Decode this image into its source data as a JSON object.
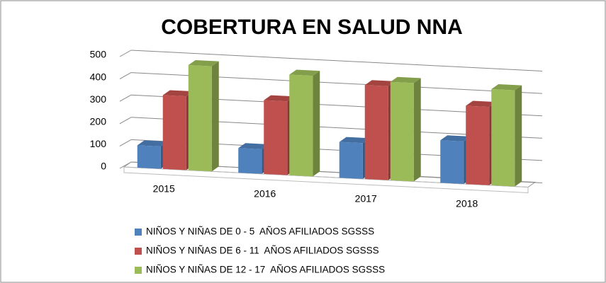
{
  "chart_data": {
    "type": "bar3d",
    "title": "COBERTURA EN SALUD NNA",
    "categories": [
      "2015",
      "2016",
      "2017",
      "2018"
    ],
    "series": [
      {
        "name": "NIÑOS Y NIÑAS DE 0 - 5  AÑOS AFILIADOS SGSSS",
        "color": "#4f81bd",
        "values": [
          100,
          110,
          160,
          190
        ]
      },
      {
        "name": "NIÑOS Y NIÑAS DE 6 - 11  AÑOS AFILIADOS SGSSS",
        "color": "#c0504d",
        "values": [
          330,
          330,
          420,
          350
        ]
      },
      {
        "name": "NIÑOS Y NIÑAS DE 12 - 17  AÑOS AFILIADOS SGSSS",
        "color": "#9bbb59",
        "values": [
          470,
          450,
          440,
          430
        ]
      }
    ],
    "ylim": [
      0,
      500
    ],
    "yticks": [
      0,
      100,
      200,
      300,
      400,
      500
    ],
    "grid": true,
    "legend": "bottom"
  }
}
